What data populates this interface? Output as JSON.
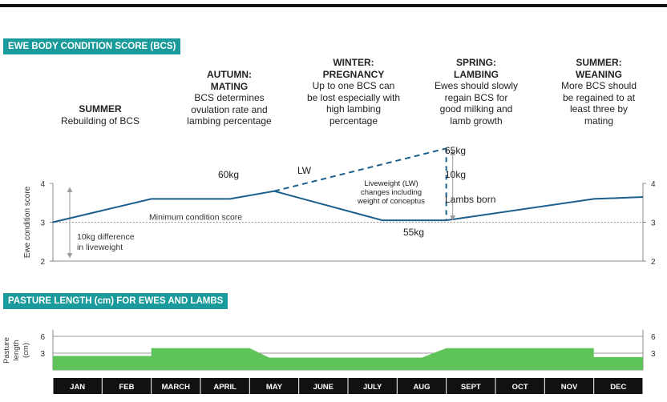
{
  "sections": {
    "bcs_title": "EWE BODY CONDITION SCORE (BCS)",
    "pasture_title": "PASTURE LENGTH (cm) FOR EWES AND LAMBS"
  },
  "seasons": [
    {
      "title": "SUMMER",
      "desc": "Rebuilding of BCS"
    },
    {
      "title": "AUTUMN: MATING",
      "desc": "BCS determines ovulation rate and lambing percentage"
    },
    {
      "title": "WINTER: PREGNANCY",
      "desc": "Up to one BCS can be lost especially with high lambing percentage"
    },
    {
      "title": "SPRING: LAMBING",
      "desc": "Ewes should slowly regain BCS for good milking and lamb growth"
    },
    {
      "title": "SUMMER: WEANING",
      "desc": "More BCS should be regained to at least three by mating"
    }
  ],
  "colors": {
    "accent": "#1a9a9a",
    "line": "#1b5f8c",
    "pasture": "#5ec45a",
    "month_bar": "#111111"
  },
  "chart_data": [
    {
      "type": "line",
      "title": "EWE BODY CONDITION SCORE (BCS)",
      "ylabel": "Ewe condition score",
      "ylim": [
        2,
        4
      ],
      "yticks": [
        2,
        3,
        4
      ],
      "categories": [
        "JAN",
        "FEB",
        "MARCH",
        "APRIL",
        "MAY",
        "JUNE",
        "JULY",
        "AUG",
        "SEPT",
        "OCT",
        "NOV",
        "DEC"
      ],
      "series": [
        {
          "x": [
            0,
            2.0,
            3.6,
            4.5,
            6.7,
            8.0,
            11.0,
            12.0
          ],
          "values": [
            3.0,
            3.6,
            3.6,
            3.8,
            3.05,
            3.05,
            3.6,
            3.65
          ]
        }
      ],
      "liveweight_series": {
        "name": "LW",
        "x": [
          4.5,
          8.0
        ],
        "values": [
          3.8,
          4.9
        ]
      },
      "annotations": {
        "min_condition": "Minimum condition score",
        "diff_10kg": "10kg difference in liveweight",
        "w60": "60kg",
        "lw": "LW",
        "lw_note": "Liveweight (LW) changes including weight of conceptus",
        "w65": "65kg",
        "w10": "10kg",
        "lambs_born": "Lambs born",
        "w55": "55kg"
      }
    },
    {
      "type": "area",
      "title": "PASTURE LENGTH (cm) FOR EWES AND LAMBS",
      "ylabel": "Pasture length (cm)",
      "yticks": [
        3,
        6
      ],
      "ylim": [
        0,
        7.5
      ],
      "categories": [
        "JAN",
        "FEB",
        "MARCH",
        "APRIL",
        "MAY",
        "JUNE",
        "JULY",
        "AUG",
        "SEPT",
        "OCT",
        "NOV",
        "DEC"
      ],
      "series": [
        {
          "x": [
            0,
            2.0,
            2.0,
            4.0,
            4.4,
            7.5,
            8.0,
            11.0,
            11.0,
            12.0
          ],
          "values": [
            2.5,
            2.5,
            3.9,
            3.9,
            2.2,
            2.2,
            3.9,
            3.9,
            2.3,
            2.3
          ]
        }
      ]
    }
  ]
}
